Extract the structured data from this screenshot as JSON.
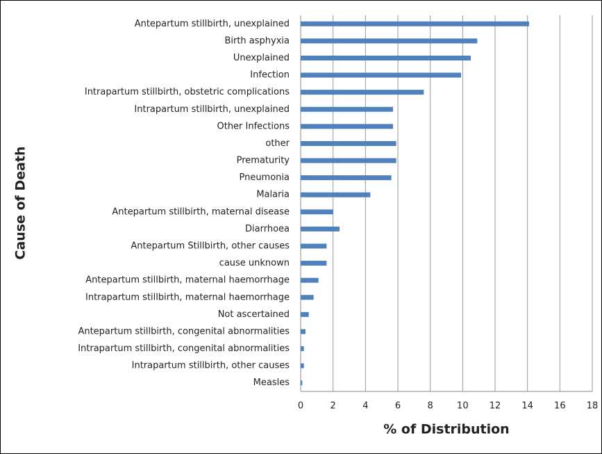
{
  "chart_data": {
    "type": "bar",
    "orientation": "horizontal",
    "x_label": "% of Distribution",
    "y_label": "Cause of Death",
    "categories": [
      "Antepartum stillbirth, unexplained",
      "Birth asphyxia",
      "Unexplained",
      "Infection",
      "Intrapartum stillbirth, obstetric complications",
      "Intrapartum stillbirth, unexplained",
      "Other Infections",
      "other",
      "Prematurity",
      "Pneumonia",
      "Malaria",
      "Antepartum stillbirth, maternal disease",
      "Diarrhoea",
      "Antepartum Stillbirth, other causes",
      "cause unknown",
      "Antepartum stillbirth, maternal haemorrhage",
      "Intrapartum stillbirth, maternal haemorrhage",
      "Not ascertained",
      "Antepartum stillbirth, congenital abnormalities",
      "Intrapartum stillbirth, congenital abnormalities",
      "Intrapartum stillbirth, other causes",
      "Measles"
    ],
    "values": [
      14.1,
      10.9,
      10.5,
      9.9,
      7.6,
      5.7,
      5.7,
      5.9,
      5.9,
      5.6,
      4.3,
      2.0,
      2.4,
      1.6,
      1.6,
      1.1,
      0.8,
      0.5,
      0.3,
      0.2,
      0.2,
      0.1
    ],
    "color": "#4f81bd",
    "xlim": [
      0,
      18
    ],
    "xticks": [
      0,
      2,
      4,
      6,
      8,
      10,
      12,
      14,
      16,
      18
    ],
    "grid": true
  }
}
